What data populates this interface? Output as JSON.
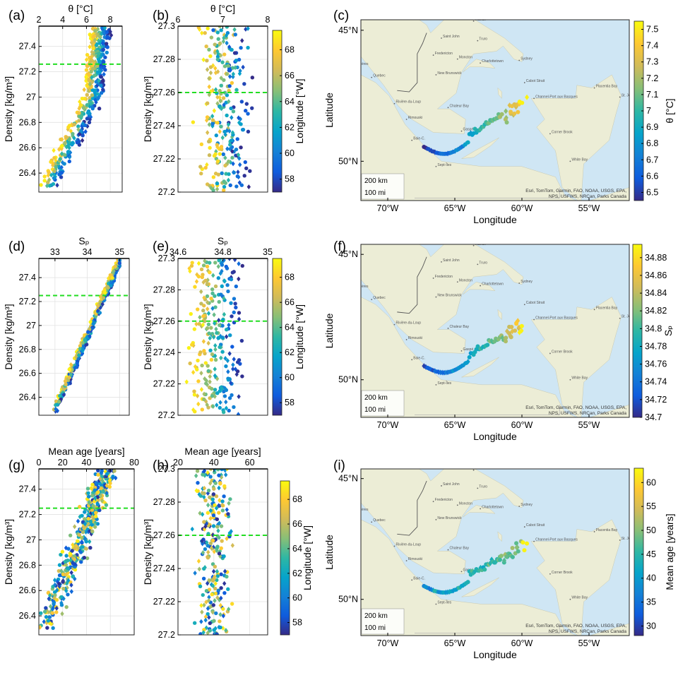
{
  "panel_labels": [
    "(a)",
    "(b)",
    "(c)",
    "(d)",
    "(e)",
    "(f)",
    "(g)",
    "(h)",
    "(i)"
  ],
  "colors": {
    "guide_line": "#22dd22",
    "water": "#cfe6f4",
    "deep_water": "#b7d7ee",
    "land": "#ecedd6",
    "border": "#aaaaaa",
    "parula": [
      "#352a87",
      "#0f5cdd",
      "#1481d6",
      "#06a4ca",
      "#2eb7a4",
      "#87bf77",
      "#d1bb59",
      "#fec832",
      "#f9fb0e"
    ]
  },
  "map_places": [
    {
      "name": "Sept-Îles",
      "lon": -66.4,
      "lat": 50.2
    },
    {
      "name": "Baie-C.",
      "lon": -68.2,
      "lat": 49.2
    },
    {
      "name": "Rimouski",
      "lon": -68.6,
      "lat": 48.4
    },
    {
      "name": "Gaspé",
      "lon": -64.5,
      "lat": 48.85
    },
    {
      "name": "Chaleur Bay",
      "lon": -65.5,
      "lat": 47.95
    },
    {
      "name": "Rivière-du-Loup",
      "lon": -69.5,
      "lat": 47.8
    },
    {
      "name": "Quebec",
      "lon": -71.2,
      "lat": 46.8
    },
    {
      "name": "Rivières",
      "lon": -72.5,
      "lat": 46.35
    },
    {
      "name": "New Brunswick",
      "lon": -66.4,
      "lat": 46.7
    },
    {
      "name": "Fredericton",
      "lon": -66.6,
      "lat": 45.95
    },
    {
      "name": "Moncton",
      "lon": -64.8,
      "lat": 46.1
    },
    {
      "name": "Charlottetown",
      "lon": -63.1,
      "lat": 46.25
    },
    {
      "name": "Saint John",
      "lon": -66.0,
      "lat": 45.3
    },
    {
      "name": "Halifax",
      "lon": -63.6,
      "lat": 44.65
    },
    {
      "name": "Augusta",
      "lon": -69.8,
      "lat": 44.3
    },
    {
      "name": "Truro",
      "lon": -63.3,
      "lat": 45.4
    },
    {
      "name": "Sydney",
      "lon": -60.2,
      "lat": 46.15
    },
    {
      "name": "Corner Brook",
      "lon": -57.9,
      "lat": 48.95
    },
    {
      "name": "White Bay",
      "lon": -56.4,
      "lat": 50.0
    },
    {
      "name": "St. John's",
      "lon": -52.7,
      "lat": 47.55
    },
    {
      "name": "Placentia Bay",
      "lon": -54.6,
      "lat": 47.2
    },
    {
      "name": "Channel-Port aux Basques",
      "lon": -59.1,
      "lat": 47.6
    },
    {
      "name": "Cabot Strait",
      "lon": -59.8,
      "lat": 47.0
    }
  ],
  "map_scale": [
    "200 km",
    "100 mi"
  ],
  "map_attribution": [
    "Esri, TomTom, Garmin, FAO, NOAA, USGS, EPA,",
    "NPS, USFWS, NRCan, Parks Canada"
  ],
  "chart_data": [
    {
      "id": "a",
      "type": "scatter",
      "title": "",
      "xlabel": "θ [°C]",
      "ylabel": "Density [kg/m³]",
      "xlim": [
        2,
        9
      ],
      "ylim": [
        27.56,
        26.25
      ],
      "xticks": [
        2,
        4,
        6,
        8
      ],
      "yticks": [
        26.4,
        26.6,
        26.8,
        27,
        27.2,
        27.4
      ],
      "ytick_labels": [
        "26.4",
        "26.6",
        "26.8",
        "27",
        "27.2",
        "27.4"
      ],
      "guide_y": 27.26,
      "variable": "theta"
    },
    {
      "id": "b",
      "type": "scatter",
      "xlabel": "θ [°C]",
      "ylabel": "Density [kg/m³]",
      "xlim": [
        6,
        8
      ],
      "ylim": [
        27.3,
        27.2
      ],
      "xticks": [
        6,
        7,
        8
      ],
      "yticks": [
        27.2,
        27.22,
        27.24,
        27.26,
        27.28,
        27.3
      ],
      "ytick_labels": [
        "27.2",
        "27.22",
        "27.24",
        "27.26",
        "27.28",
        "27.3"
      ],
      "guide_y": 27.26,
      "variable": "theta",
      "colorbar": {
        "label": "Longitude [°W]",
        "range": [
          57,
          69.5
        ],
        "ticks": [
          58,
          60,
          62,
          64,
          66,
          68
        ]
      }
    },
    {
      "id": "c",
      "type": "scatter",
      "xlabel": "Longitude",
      "ylabel": "Latitude",
      "xlim": [
        -72,
        -52
      ],
      "ylim": [
        44.6,
        51.5
      ],
      "xticks": [
        -70,
        -65,
        -60,
        -55
      ],
      "xtick_labels": [
        "70°W",
        "65°W",
        "60°W",
        "55°W"
      ],
      "yticks": [
        45,
        50
      ],
      "ytick_labels": [
        "45°N",
        "50°N"
      ],
      "variable": "theta",
      "colorbar": {
        "label": "θ [°C]",
        "range": [
          6.45,
          7.55
        ],
        "ticks": [
          6.5,
          6.6,
          6.7,
          6.8,
          6.9,
          7,
          7.1,
          7.2,
          7.3,
          7.4,
          7.5
        ],
        "tick_labels": [
          "6.5",
          "6.6",
          "6.7",
          "6.8",
          "6.9",
          "7",
          "7.1",
          "7.2",
          "7.3",
          "7.4",
          "7.5"
        ]
      }
    },
    {
      "id": "d",
      "type": "scatter",
      "xlabel": "Sₚ",
      "ylabel": "Density [kg/m³]",
      "xlim": [
        32.5,
        35.3
      ],
      "ylim": [
        27.56,
        26.25
      ],
      "xticks": [
        33,
        34,
        35
      ],
      "yticks": [
        26.4,
        26.6,
        26.8,
        27,
        27.2,
        27.4
      ],
      "ytick_labels": [
        "26.4",
        "26.6",
        "26.8",
        "27",
        "27.2",
        "27.4"
      ],
      "guide_y": 27.25,
      "variable": "salinity"
    },
    {
      "id": "e",
      "type": "scatter",
      "xlabel": "Sₚ",
      "ylabel": "Density [kg/m³]",
      "xlim": [
        34.6,
        35
      ],
      "ylim": [
        27.3,
        27.2
      ],
      "xticks": [
        34.6,
        34.8,
        35
      ],
      "xtick_labels": [
        "34.6",
        "34.8",
        "35"
      ],
      "yticks": [
        27.2,
        27.22,
        27.24,
        27.26,
        27.28,
        27.3
      ],
      "ytick_labels": [
        "27.2",
        "27.22",
        "27.24",
        "27.26",
        "27.28",
        "27.3"
      ],
      "guide_y": 27.26,
      "variable": "salinity",
      "colorbar": {
        "label": "Longitude [°W]",
        "range": [
          57,
          69.5
        ],
        "ticks": [
          58,
          60,
          62,
          64,
          66,
          68
        ]
      }
    },
    {
      "id": "f",
      "type": "scatter",
      "xlabel": "Longitude",
      "ylabel": "Latitude",
      "xlim": [
        -72,
        -52
      ],
      "ylim": [
        44.6,
        51.5
      ],
      "xticks": [
        -70,
        -65,
        -60,
        -55
      ],
      "xtick_labels": [
        "70°W",
        "65°W",
        "60°W",
        "55°W"
      ],
      "yticks": [
        45,
        50
      ],
      "ytick_labels": [
        "45°N",
        "50°N"
      ],
      "variable": "salinity",
      "colorbar": {
        "label": "Sₚ",
        "range": [
          34.7,
          34.895
        ],
        "ticks": [
          34.7,
          34.72,
          34.74,
          34.76,
          34.78,
          34.8,
          34.82,
          34.84,
          34.86,
          34.88
        ],
        "tick_labels": [
          "34.7",
          "34.72",
          "34.74",
          "34.76",
          "34.78",
          "34.8",
          "34.82",
          "34.84",
          "34.86",
          "34.88"
        ]
      }
    },
    {
      "id": "g",
      "type": "scatter",
      "xlabel": "Mean age [years]",
      "ylabel": "Density [kg/m³]",
      "xlim": [
        0,
        80
      ],
      "ylim": [
        27.56,
        26.25
      ],
      "xticks": [
        0,
        20,
        40,
        60,
        80
      ],
      "yticks": [
        26.4,
        26.6,
        26.8,
        27,
        27.2,
        27.4
      ],
      "ytick_labels": [
        "26.4",
        "26.6",
        "26.8",
        "27",
        "27.2",
        "27.4"
      ],
      "guide_y": 27.25,
      "variable": "age"
    },
    {
      "id": "h",
      "type": "scatter",
      "xlabel": "Mean age [years]",
      "ylabel": "Density [kg/m³]",
      "xlim": [
        20,
        70
      ],
      "ylim": [
        27.3,
        27.2
      ],
      "xticks": [
        20,
        40,
        60
      ],
      "yticks": [
        27.2,
        27.22,
        27.24,
        27.26,
        27.28,
        27.3
      ],
      "ytick_labels": [
        "27.2",
        "27.22",
        "27.24",
        "27.26",
        "27.28",
        "27.3"
      ],
      "guide_y": 27.26,
      "variable": "age",
      "colorbar": {
        "label": "Longitude [°W]",
        "range": [
          57,
          69.5
        ],
        "ticks": [
          58,
          60,
          62,
          64,
          66,
          68
        ]
      }
    },
    {
      "id": "i",
      "type": "scatter",
      "xlabel": "Longitude",
      "ylabel": "Latitude",
      "xlim": [
        -72,
        -52
      ],
      "ylim": [
        44.6,
        51.5
      ],
      "xticks": [
        -70,
        -65,
        -60,
        -55
      ],
      "xtick_labels": [
        "70°W",
        "65°W",
        "60°W",
        "55°W"
      ],
      "yticks": [
        45,
        50
      ],
      "ytick_labels": [
        "45°N",
        "50°N"
      ],
      "variable": "age",
      "colorbar": {
        "label": "Mean age [years]",
        "range": [
          28,
          63
        ],
        "ticks": [
          30,
          35,
          40,
          45,
          50,
          55,
          60
        ]
      }
    }
  ]
}
